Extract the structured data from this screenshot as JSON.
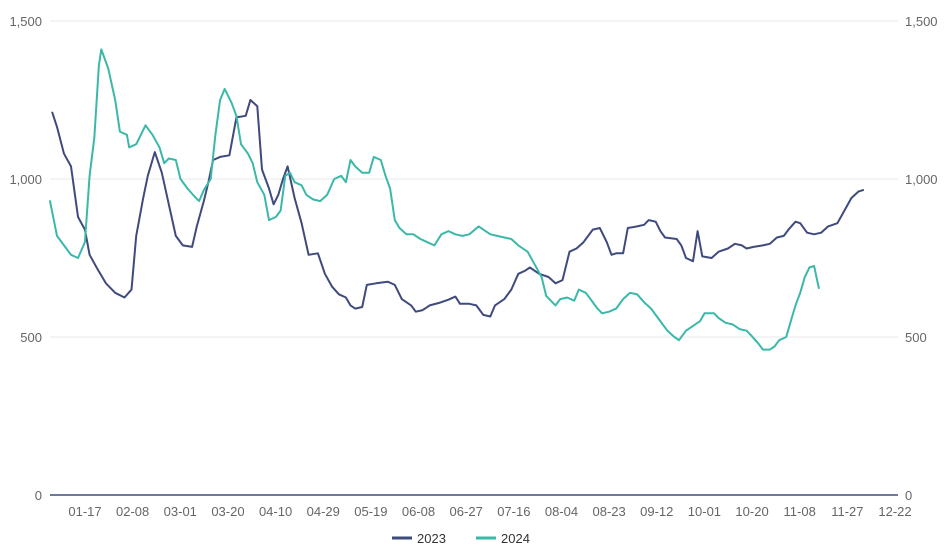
{
  "chart_data": {
    "type": "line",
    "title": "",
    "xlabel": "",
    "ylabel": "",
    "ylim": [
      0,
      1500
    ],
    "y_ticks": [
      "0",
      "500",
      "1,000",
      "1,500"
    ],
    "x_ticks": [
      "01-17",
      "02-08",
      "03-01",
      "03-20",
      "04-10",
      "04-29",
      "05-19",
      "06-08",
      "06-27",
      "07-16",
      "08-04",
      "08-23",
      "09-12",
      "10-01",
      "10-20",
      "11-08",
      "11-27",
      "12-22"
    ],
    "grid": "horizontal",
    "legend": "bottom-center",
    "series": [
      {
        "name": "2023",
        "color": "#3f4a7d",
        "points": [
          [
            1,
            1210
          ],
          [
            3,
            1165
          ],
          [
            6,
            1080
          ],
          [
            9,
            1040
          ],
          [
            12,
            880
          ],
          [
            15,
            840
          ],
          [
            17,
            760
          ],
          [
            20,
            720
          ],
          [
            24,
            670
          ],
          [
            28,
            640
          ],
          [
            32,
            625
          ],
          [
            35,
            650
          ],
          [
            37,
            820
          ],
          [
            40,
            940
          ],
          [
            42,
            1010
          ],
          [
            45,
            1085
          ],
          [
            48,
            1020
          ],
          [
            51,
            920
          ],
          [
            54,
            820
          ],
          [
            57,
            790
          ],
          [
            61,
            785
          ],
          [
            63,
            850
          ],
          [
            66,
            930
          ],
          [
            68,
            990
          ],
          [
            70,
            1060
          ],
          [
            73,
            1070
          ],
          [
            77,
            1075
          ],
          [
            80,
            1195
          ],
          [
            84,
            1200
          ],
          [
            86,
            1250
          ],
          [
            89,
            1230
          ],
          [
            91,
            1030
          ],
          [
            94,
            970
          ],
          [
            96,
            920
          ],
          [
            98,
            950
          ],
          [
            100,
            1000
          ],
          [
            102,
            1040
          ],
          [
            105,
            940
          ],
          [
            108,
            860
          ],
          [
            111,
            760
          ],
          [
            115,
            765
          ],
          [
            118,
            700
          ],
          [
            121,
            660
          ],
          [
            124,
            635
          ],
          [
            127,
            625
          ],
          [
            129,
            600
          ],
          [
            131,
            590
          ],
          [
            134,
            595
          ],
          [
            136,
            665
          ],
          [
            140,
            670
          ],
          [
            145,
            675
          ],
          [
            148,
            665
          ],
          [
            151,
            620
          ],
          [
            155,
            600
          ],
          [
            157,
            580
          ],
          [
            160,
            585
          ],
          [
            163,
            600
          ],
          [
            167,
            608
          ],
          [
            171,
            618
          ],
          [
            174,
            628
          ],
          [
            176,
            605
          ],
          [
            180,
            605
          ],
          [
            183,
            600
          ],
          [
            186,
            570
          ],
          [
            189,
            565
          ],
          [
            191,
            600
          ],
          [
            195,
            620
          ],
          [
            198,
            650
          ],
          [
            201,
            700
          ],
          [
            204,
            710
          ],
          [
            206,
            720
          ],
          [
            210,
            700
          ],
          [
            214,
            690
          ],
          [
            217,
            670
          ],
          [
            220,
            680
          ],
          [
            223,
            770
          ],
          [
            226,
            780
          ],
          [
            229,
            800
          ],
          [
            233,
            840
          ],
          [
            236,
            845
          ],
          [
            239,
            800
          ],
          [
            241,
            760
          ],
          [
            243,
            765
          ],
          [
            246,
            765
          ],
          [
            248,
            845
          ],
          [
            252,
            850
          ],
          [
            255,
            855
          ],
          [
            257,
            870
          ],
          [
            260,
            865
          ],
          [
            262,
            835
          ],
          [
            264,
            815
          ],
          [
            269,
            810
          ],
          [
            271,
            790
          ],
          [
            273,
            750
          ],
          [
            276,
            740
          ],
          [
            278,
            835
          ],
          [
            280,
            755
          ],
          [
            284,
            750
          ],
          [
            287,
            770
          ],
          [
            291,
            780
          ],
          [
            294,
            795
          ],
          [
            297,
            790
          ],
          [
            299,
            780
          ],
          [
            302,
            785
          ],
          [
            306,
            790
          ],
          [
            309,
            795
          ],
          [
            312,
            815
          ],
          [
            315,
            820
          ],
          [
            317,
            840
          ],
          [
            320,
            865
          ],
          [
            322,
            860
          ],
          [
            325,
            830
          ],
          [
            328,
            825
          ],
          [
            331,
            830
          ],
          [
            334,
            850
          ],
          [
            338,
            860
          ],
          [
            341,
            900
          ],
          [
            344,
            940
          ],
          [
            347,
            960
          ],
          [
            349,
            965
          ]
        ]
      },
      {
        "name": "2024",
        "color": "#3bb8a8",
        "points": [
          [
            0,
            930
          ],
          [
            3,
            820
          ],
          [
            6,
            790
          ],
          [
            9,
            760
          ],
          [
            12,
            750
          ],
          [
            15,
            800
          ],
          [
            17,
            1010
          ],
          [
            19,
            1130
          ],
          [
            21,
            1360
          ],
          [
            22,
            1410
          ],
          [
            25,
            1350
          ],
          [
            28,
            1250
          ],
          [
            30,
            1150
          ],
          [
            33,
            1140
          ],
          [
            34,
            1100
          ],
          [
            37,
            1110
          ],
          [
            39,
            1140
          ],
          [
            41,
            1170
          ],
          [
            44,
            1140
          ],
          [
            47,
            1100
          ],
          [
            49,
            1050
          ],
          [
            51,
            1065
          ],
          [
            54,
            1060
          ],
          [
            56,
            1000
          ],
          [
            59,
            970
          ],
          [
            62,
            945
          ],
          [
            64,
            930
          ],
          [
            66,
            965
          ],
          [
            69,
            1000
          ],
          [
            71,
            1140
          ],
          [
            73,
            1250
          ],
          [
            75,
            1285
          ],
          [
            78,
            1240
          ],
          [
            80,
            1200
          ],
          [
            82,
            1110
          ],
          [
            85,
            1080
          ],
          [
            87,
            1050
          ],
          [
            89,
            990
          ],
          [
            92,
            950
          ],
          [
            94,
            870
          ],
          [
            97,
            880
          ],
          [
            99,
            900
          ],
          [
            101,
            1010
          ],
          [
            103,
            1020
          ],
          [
            105,
            990
          ],
          [
            108,
            980
          ],
          [
            110,
            950
          ],
          [
            113,
            935
          ],
          [
            116,
            930
          ],
          [
            119,
            950
          ],
          [
            122,
            1000
          ],
          [
            125,
            1010
          ],
          [
            127,
            990
          ],
          [
            129,
            1060
          ],
          [
            131,
            1040
          ],
          [
            134,
            1020
          ],
          [
            137,
            1020
          ],
          [
            139,
            1070
          ],
          [
            142,
            1060
          ],
          [
            144,
            1010
          ],
          [
            146,
            970
          ],
          [
            148,
            870
          ],
          [
            150,
            845
          ],
          [
            153,
            825
          ],
          [
            156,
            825
          ],
          [
            159,
            810
          ],
          [
            162,
            800
          ],
          [
            165,
            790
          ],
          [
            168,
            825
          ],
          [
            171,
            835
          ],
          [
            174,
            825
          ],
          [
            177,
            820
          ],
          [
            180,
            825
          ],
          [
            184,
            850
          ],
          [
            186,
            840
          ],
          [
            189,
            825
          ],
          [
            192,
            820
          ],
          [
            195,
            815
          ],
          [
            198,
            810
          ],
          [
            201,
            790
          ],
          [
            205,
            770
          ],
          [
            208,
            730
          ],
          [
            211,
            690
          ],
          [
            213,
            630
          ],
          [
            217,
            600
          ],
          [
            219,
            620
          ],
          [
            222,
            625
          ],
          [
            225,
            615
          ],
          [
            227,
            650
          ],
          [
            230,
            640
          ],
          [
            232,
            620
          ],
          [
            235,
            590
          ],
          [
            237,
            575
          ],
          [
            240,
            580
          ],
          [
            243,
            590
          ],
          [
            246,
            620
          ],
          [
            249,
            640
          ],
          [
            252,
            635
          ],
          [
            255,
            610
          ],
          [
            258,
            590
          ],
          [
            260,
            570
          ],
          [
            263,
            540
          ],
          [
            265,
            520
          ],
          [
            268,
            500
          ],
          [
            270,
            490
          ],
          [
            273,
            520
          ],
          [
            276,
            535
          ],
          [
            279,
            550
          ],
          [
            281,
            575
          ],
          [
            285,
            575
          ],
          [
            287,
            560
          ],
          [
            290,
            545
          ],
          [
            293,
            540
          ],
          [
            296,
            525
          ],
          [
            299,
            520
          ],
          [
            301,
            505
          ],
          [
            304,
            480
          ],
          [
            306,
            460
          ],
          [
            309,
            460
          ],
          [
            311,
            470
          ],
          [
            313,
            490
          ],
          [
            316,
            500
          ],
          [
            318,
            550
          ],
          [
            320,
            600
          ],
          [
            322,
            640
          ],
          [
            324,
            690
          ],
          [
            326,
            720
          ],
          [
            328,
            725
          ],
          [
            330,
            655
          ]
        ]
      }
    ]
  }
}
